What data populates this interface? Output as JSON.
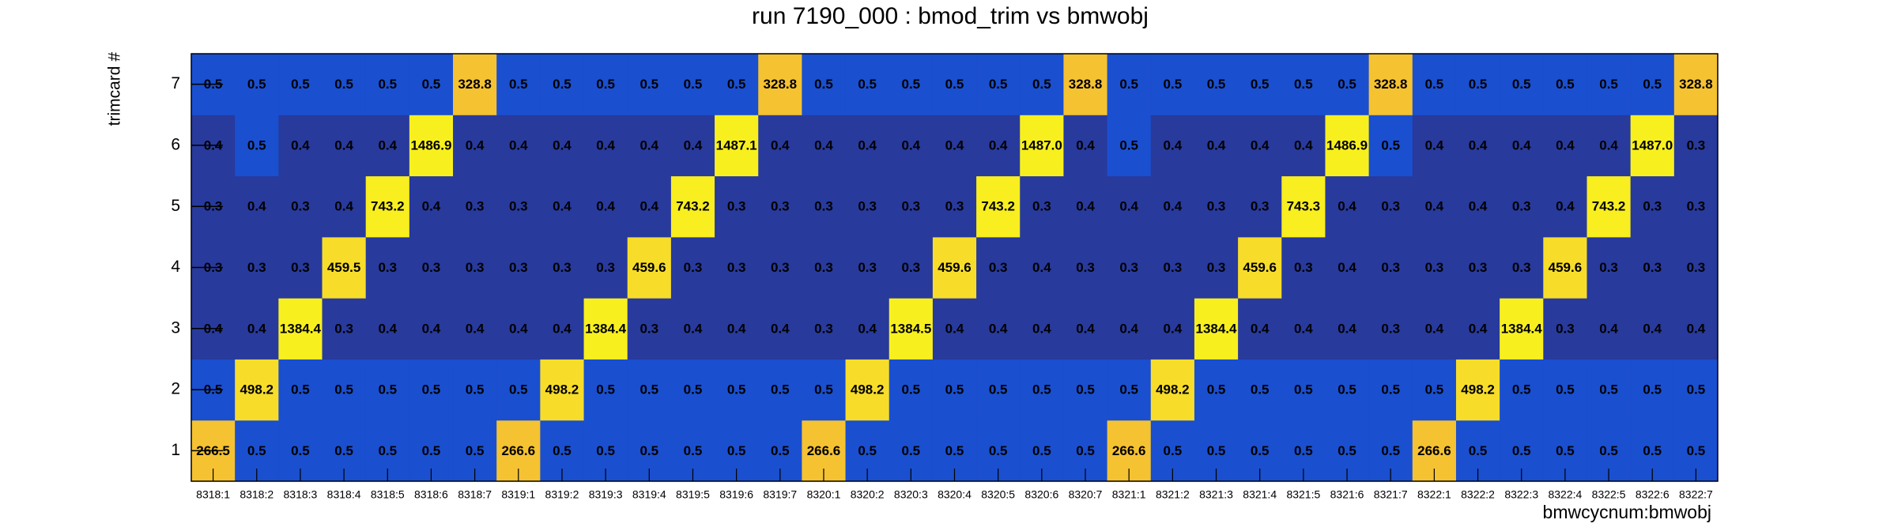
{
  "chart_data": {
    "type": "heatmap",
    "title": "run 7190_000 : bmod_trim vs bmwobj",
    "x_label": "bmwcycnum:bmwobj",
    "y_label": "trimcard #",
    "categories": [
      "8318:1",
      "8318:2",
      "8318:3",
      "8318:4",
      "8318:5",
      "8318:6",
      "8318:7",
      "8319:1",
      "8319:2",
      "8319:3",
      "8319:4",
      "8319:5",
      "8319:6",
      "8319:7",
      "8320:1",
      "8320:2",
      "8320:3",
      "8320:4",
      "8320:5",
      "8320:6",
      "8320:7",
      "8321:1",
      "8321:2",
      "8321:3",
      "8321:4",
      "8321:5",
      "8321:6",
      "8321:7",
      "8322:1",
      "8322:2",
      "8322:3",
      "8322:4",
      "8322:5",
      "8322:6",
      "8322:7"
    ],
    "ylim": [
      0.5,
      7.5
    ],
    "yticks": [
      1,
      2,
      3,
      4,
      5,
      6,
      7
    ],
    "logz": true,
    "palette": [
      "#283a9c",
      "#1a4fcf",
      "#1a4fcf",
      "#1a4fcf",
      "#1a4fcf",
      "#1a4fcf",
      "#1a4fcf",
      "#1a4fcf",
      "#1a4fcf",
      "#1a4fcf",
      "#1a4fcf",
      "#1a4fcf",
      "#1a4fcf",
      "#1a4fcf",
      "#1a4fcf",
      "#f5c232",
      "#f7dd2a",
      "#f8ee20",
      "#f8f01e",
      "#f8f01e"
    ],
    "z": [
      [
        266.5,
        0.5,
        0.5,
        0.5,
        0.5,
        0.5,
        0.5,
        266.6,
        0.5,
        0.5,
        0.5,
        0.5,
        0.5,
        0.5,
        266.6,
        0.5,
        0.5,
        0.5,
        0.5,
        0.5,
        0.5,
        266.6,
        0.5,
        0.5,
        0.5,
        0.5,
        0.5,
        0.5,
        266.6,
        0.5,
        0.5,
        0.5,
        0.5,
        0.5,
        0.5
      ],
      [
        0.5,
        498.2,
        0.5,
        0.5,
        0.5,
        0.5,
        0.5,
        0.5,
        498.2,
        0.5,
        0.5,
        0.5,
        0.5,
        0.5,
        0.5,
        498.2,
        0.5,
        0.5,
        0.5,
        0.5,
        0.5,
        0.5,
        498.2,
        0.5,
        0.5,
        0.5,
        0.5,
        0.5,
        0.5,
        498.2,
        0.5,
        0.5,
        0.5,
        0.5,
        0.5
      ],
      [
        0.4,
        0.4,
        1384.4,
        0.3,
        0.4,
        0.4,
        0.4,
        0.4,
        0.4,
        1384.4,
        0.3,
        0.4,
        0.4,
        0.4,
        0.3,
        0.4,
        1384.5,
        0.4,
        0.4,
        0.4,
        0.4,
        0.4,
        0.4,
        1384.4,
        0.4,
        0.4,
        0.4,
        0.3,
        0.4,
        0.4,
        1384.4,
        0.3,
        0.4,
        0.4,
        0.4
      ],
      [
        0.3,
        0.3,
        0.3,
        459.5,
        0.3,
        0.3,
        0.3,
        0.3,
        0.3,
        0.3,
        459.6,
        0.3,
        0.3,
        0.3,
        0.3,
        0.3,
        0.3,
        459.6,
        0.3,
        0.4,
        0.3,
        0.3,
        0.3,
        0.3,
        459.6,
        0.3,
        0.4,
        0.3,
        0.3,
        0.3,
        0.3,
        459.6,
        0.3,
        0.3,
        0.3
      ],
      [
        0.3,
        0.4,
        0.3,
        0.4,
        743.2,
        0.4,
        0.3,
        0.3,
        0.4,
        0.4,
        0.4,
        743.2,
        0.3,
        0.3,
        0.3,
        0.3,
        0.3,
        0.3,
        743.2,
        0.3,
        0.4,
        0.4,
        0.4,
        0.3,
        0.3,
        743.3,
        0.4,
        0.3,
        0.4,
        0.4,
        0.3,
        0.4,
        743.2,
        0.3,
        0.3
      ],
      [
        0.4,
        0.5,
        0.4,
        0.4,
        0.4,
        1486.9,
        0.4,
        0.4,
        0.4,
        0.4,
        0.4,
        0.4,
        1487.1,
        0.4,
        0.4,
        0.4,
        0.4,
        0.4,
        0.4,
        1487.0,
        0.4,
        0.5,
        0.4,
        0.4,
        0.4,
        0.4,
        1486.9,
        0.5,
        0.4,
        0.4,
        0.4,
        0.4,
        0.4,
        1487.0,
        0.3
      ],
      [
        0.5,
        0.5,
        0.5,
        0.5,
        0.5,
        0.5,
        328.8,
        0.5,
        0.5,
        0.5,
        0.5,
        0.5,
        0.5,
        328.8,
        0.5,
        0.5,
        0.5,
        0.5,
        0.5,
        0.5,
        328.8,
        0.5,
        0.5,
        0.5,
        0.5,
        0.5,
        0.5,
        328.8,
        0.5,
        0.5,
        0.5,
        0.5,
        0.5,
        0.5,
        328.8
      ]
    ],
    "value_labels": [
      [
        "266.5",
        "0.5",
        "0.5",
        "0.5",
        "0.5",
        "0.5",
        "0.5",
        "266.6",
        "0.5",
        "0.5",
        "0.5",
        "0.5",
        "0.5",
        "0.5",
        "266.6",
        "0.5",
        "0.5",
        "0.5",
        "0.5",
        "0.5",
        "0.5",
        "266.6",
        "0.5",
        "0.5",
        "0.5",
        "0.5",
        "0.5",
        "0.5",
        "266.6",
        "0.5",
        "0.5",
        "0.5",
        "0.5",
        "0.5",
        "0.5"
      ],
      [
        "0.5",
        "498.2",
        "0.5",
        "0.5",
        "0.5",
        "0.5",
        "0.5",
        "0.5",
        "498.2",
        "0.5",
        "0.5",
        "0.5",
        "0.5",
        "0.5",
        "0.5",
        "498.2",
        "0.5",
        "0.5",
        "0.5",
        "0.5",
        "0.5",
        "0.5",
        "498.2",
        "0.5",
        "0.5",
        "0.5",
        "0.5",
        "0.5",
        "0.5",
        "498.2",
        "0.5",
        "0.5",
        "0.5",
        "0.5",
        "0.5"
      ],
      [
        "0.4",
        "0.4",
        "1384.4",
        "0.3",
        "0.4",
        "0.4",
        "0.4",
        "0.4",
        "0.4",
        "1384.4",
        "0.3",
        "0.4",
        "0.4",
        "0.4",
        "0.3",
        "0.4",
        "1384.5",
        "0.4",
        "0.4",
        "0.4",
        "0.4",
        "0.4",
        "0.4",
        "1384.4",
        "0.4",
        "0.4",
        "0.4",
        "0.3",
        "0.4",
        "0.4",
        "1384.4",
        "0.3",
        "0.4",
        "0.4",
        "0.4"
      ],
      [
        "0.3",
        "0.3",
        "0.3",
        "459.5",
        "0.3",
        "0.3",
        "0.3",
        "0.3",
        "0.3",
        "0.3",
        "459.6",
        "0.3",
        "0.3",
        "0.3",
        "0.3",
        "0.3",
        "0.3",
        "459.6",
        "0.3",
        "0.4",
        "0.3",
        "0.3",
        "0.3",
        "0.3",
        "459.6",
        "0.3",
        "0.4",
        "0.3",
        "0.3",
        "0.3",
        "0.3",
        "459.6",
        "0.3",
        "0.3",
        "0.3"
      ],
      [
        "0.3",
        "0.4",
        "0.3",
        "0.4",
        "743.2",
        "0.4",
        "0.3",
        "0.3",
        "0.4",
        "0.4",
        "0.4",
        "743.2",
        "0.3",
        "0.3",
        "0.3",
        "0.3",
        "0.3",
        "0.3",
        "743.2",
        "0.3",
        "0.4",
        "0.4",
        "0.4",
        "0.3",
        "0.3",
        "743.3",
        "0.4",
        "0.3",
        "0.4",
        "0.4",
        "0.3",
        "0.4",
        "743.2",
        "0.3",
        "0.3"
      ],
      [
        "0.4",
        "0.5",
        "0.4",
        "0.4",
        "0.4",
        "1486.9",
        "0.4",
        "0.4",
        "0.4",
        "0.4",
        "0.4",
        "0.4",
        "1487.1",
        "0.4",
        "0.4",
        "0.4",
        "0.4",
        "0.4",
        "0.4",
        "1487.0",
        "0.4",
        "0.5",
        "0.4",
        "0.4",
        "0.4",
        "0.4",
        "1486.9",
        "0.5",
        "0.4",
        "0.4",
        "0.4",
        "0.4",
        "0.4",
        "1487.0",
        "0.3"
      ],
      [
        "0.5",
        "0.5",
        "0.5",
        "0.5",
        "0.5",
        "0.5",
        "328.8",
        "0.5",
        "0.5",
        "0.5",
        "0.5",
        "0.5",
        "0.5",
        "328.8",
        "0.5",
        "0.5",
        "0.5",
        "0.5",
        "0.5",
        "0.5",
        "328.8",
        "0.5",
        "0.5",
        "0.5",
        "0.5",
        "0.5",
        "0.5",
        "328.8",
        "0.5",
        "0.5",
        "0.5",
        "0.5",
        "0.5",
        "0.5",
        "328.8"
      ]
    ]
  }
}
